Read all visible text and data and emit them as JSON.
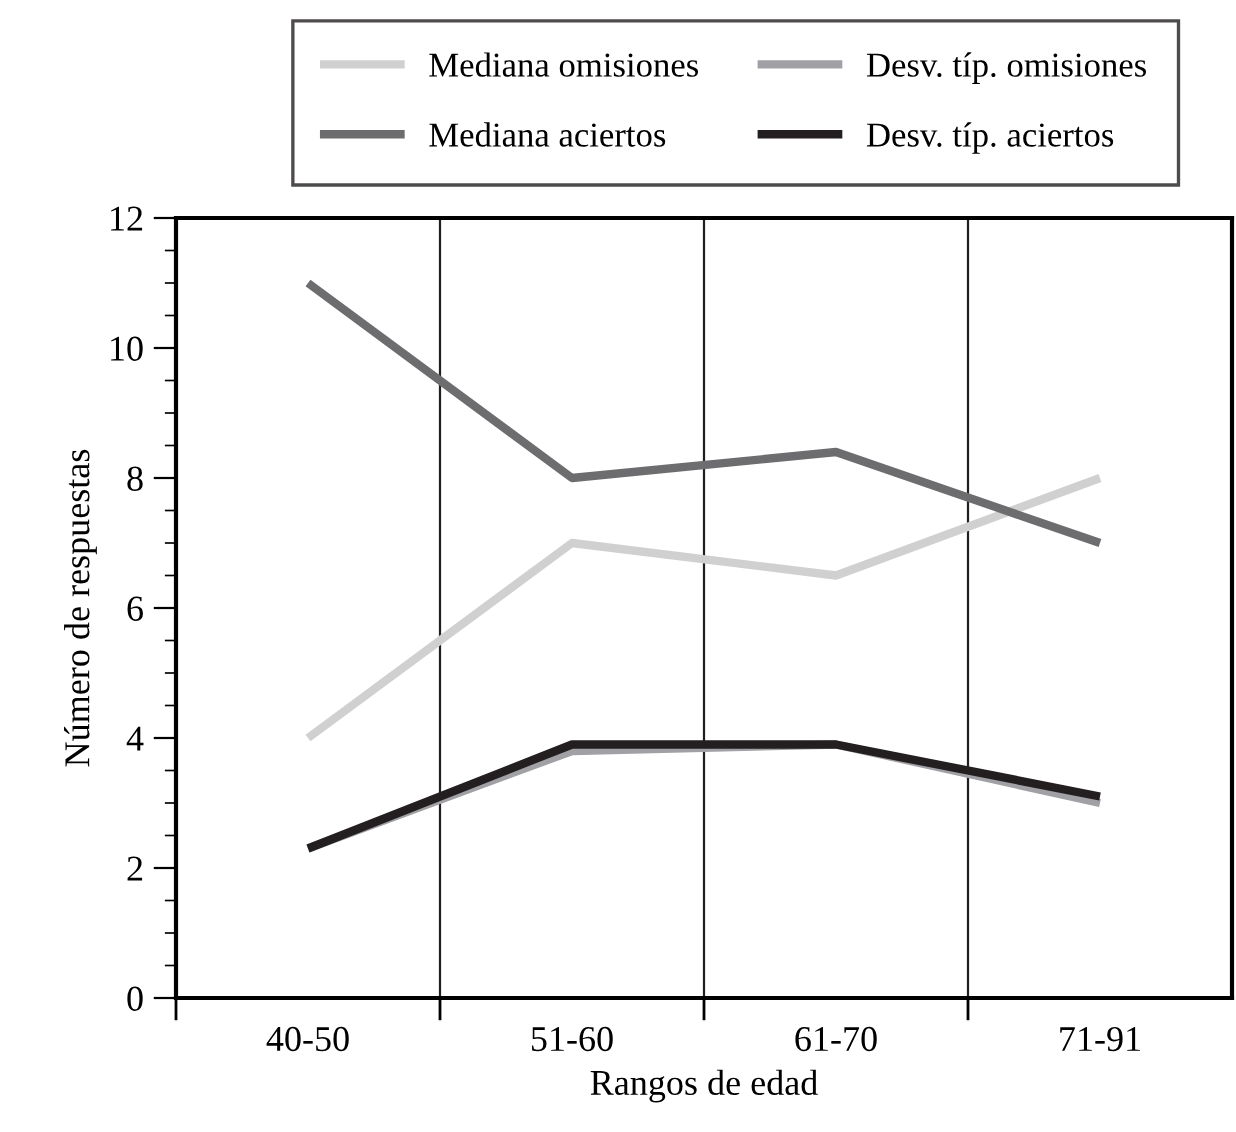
{
  "chart_data": {
    "type": "line",
    "xlabel": "Rangos de edad",
    "ylabel": "Número de respuestas",
    "categories": [
      "40-50",
      "51-60",
      "61-70",
      "71-91"
    ],
    "series": [
      {
        "name": "Mediana omisiones",
        "color": "#d0d0d0",
        "values": [
          4,
          7,
          6.5,
          8
        ]
      },
      {
        "name": "Mediana aciertos",
        "color": "#6d6d70",
        "values": [
          11,
          8,
          8.4,
          7
        ]
      },
      {
        "name": "Desv. típ. omisiones",
        "color": "#a0a0a5",
        "values": [
          2.3,
          3.8,
          3.9,
          3.0
        ]
      },
      {
        "name": "Desv. típ. aciertos",
        "color": "#231f20",
        "values": [
          2.3,
          3.9,
          3.9,
          3.1
        ]
      }
    ],
    "ylim": [
      0,
      12
    ],
    "yticks": [
      0,
      2,
      4,
      6,
      8,
      10,
      12
    ],
    "grid": "x",
    "legend": "top",
    "marker": "none",
    "line_style": "solid"
  }
}
